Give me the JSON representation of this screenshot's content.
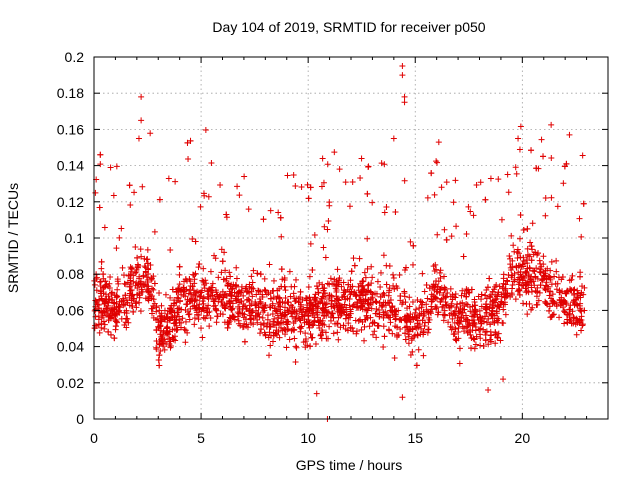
{
  "chart_data": {
    "type": "scatter",
    "title": "Day 104 of 2019, SRMTID for receiver p050",
    "xlabel": "GPS time / hours",
    "ylabel": "SRMTID / TECUs",
    "xlim": [
      0,
      24
    ],
    "ylim": [
      0,
      0.2
    ],
    "xticks": [
      0,
      5,
      10,
      15,
      20
    ],
    "xtick_labels": [
      "0",
      "5",
      "10",
      "15",
      "20"
    ],
    "yticks": [
      0,
      0.02,
      0.04,
      0.06,
      0.08,
      0.1,
      0.12,
      0.14,
      0.16,
      0.18,
      0.2
    ],
    "ytick_labels": [
      "0",
      "0.02",
      "0.04",
      "0.06",
      "0.08",
      "0.1",
      "0.12",
      "0.14",
      "0.16",
      "0.18",
      "0.2"
    ],
    "grid": true,
    "marker": "+",
    "color": "#e00000",
    "x_range_of_data": [
      0,
      22.9
    ],
    "y_typical_range": [
      0.04,
      0.09
    ],
    "series": [
      {
        "name": "SRMTID",
        "notable_points": [
          {
            "x": 2.2,
            "y": 0.178
          },
          {
            "x": 2.2,
            "y": 0.165
          },
          {
            "x": 2.1,
            "y": 0.155
          },
          {
            "x": 14.4,
            "y": 0.195
          },
          {
            "x": 14.4,
            "y": 0.19
          },
          {
            "x": 14.5,
            "y": 0.178
          },
          {
            "x": 14.5,
            "y": 0.175
          },
          {
            "x": 22.2,
            "y": 0.157
          },
          {
            "x": 19.8,
            "y": 0.155
          },
          {
            "x": 16.1,
            "y": 0.153
          },
          {
            "x": 14.0,
            "y": 0.155
          },
          {
            "x": 10.4,
            "y": 0.014
          },
          {
            "x": 10.9,
            "y": 0.0
          },
          {
            "x": 14.4,
            "y": 0.012
          },
          {
            "x": 18.4,
            "y": 0.016
          },
          {
            "x": 19.1,
            "y": 0.022
          }
        ]
      }
    ]
  }
}
